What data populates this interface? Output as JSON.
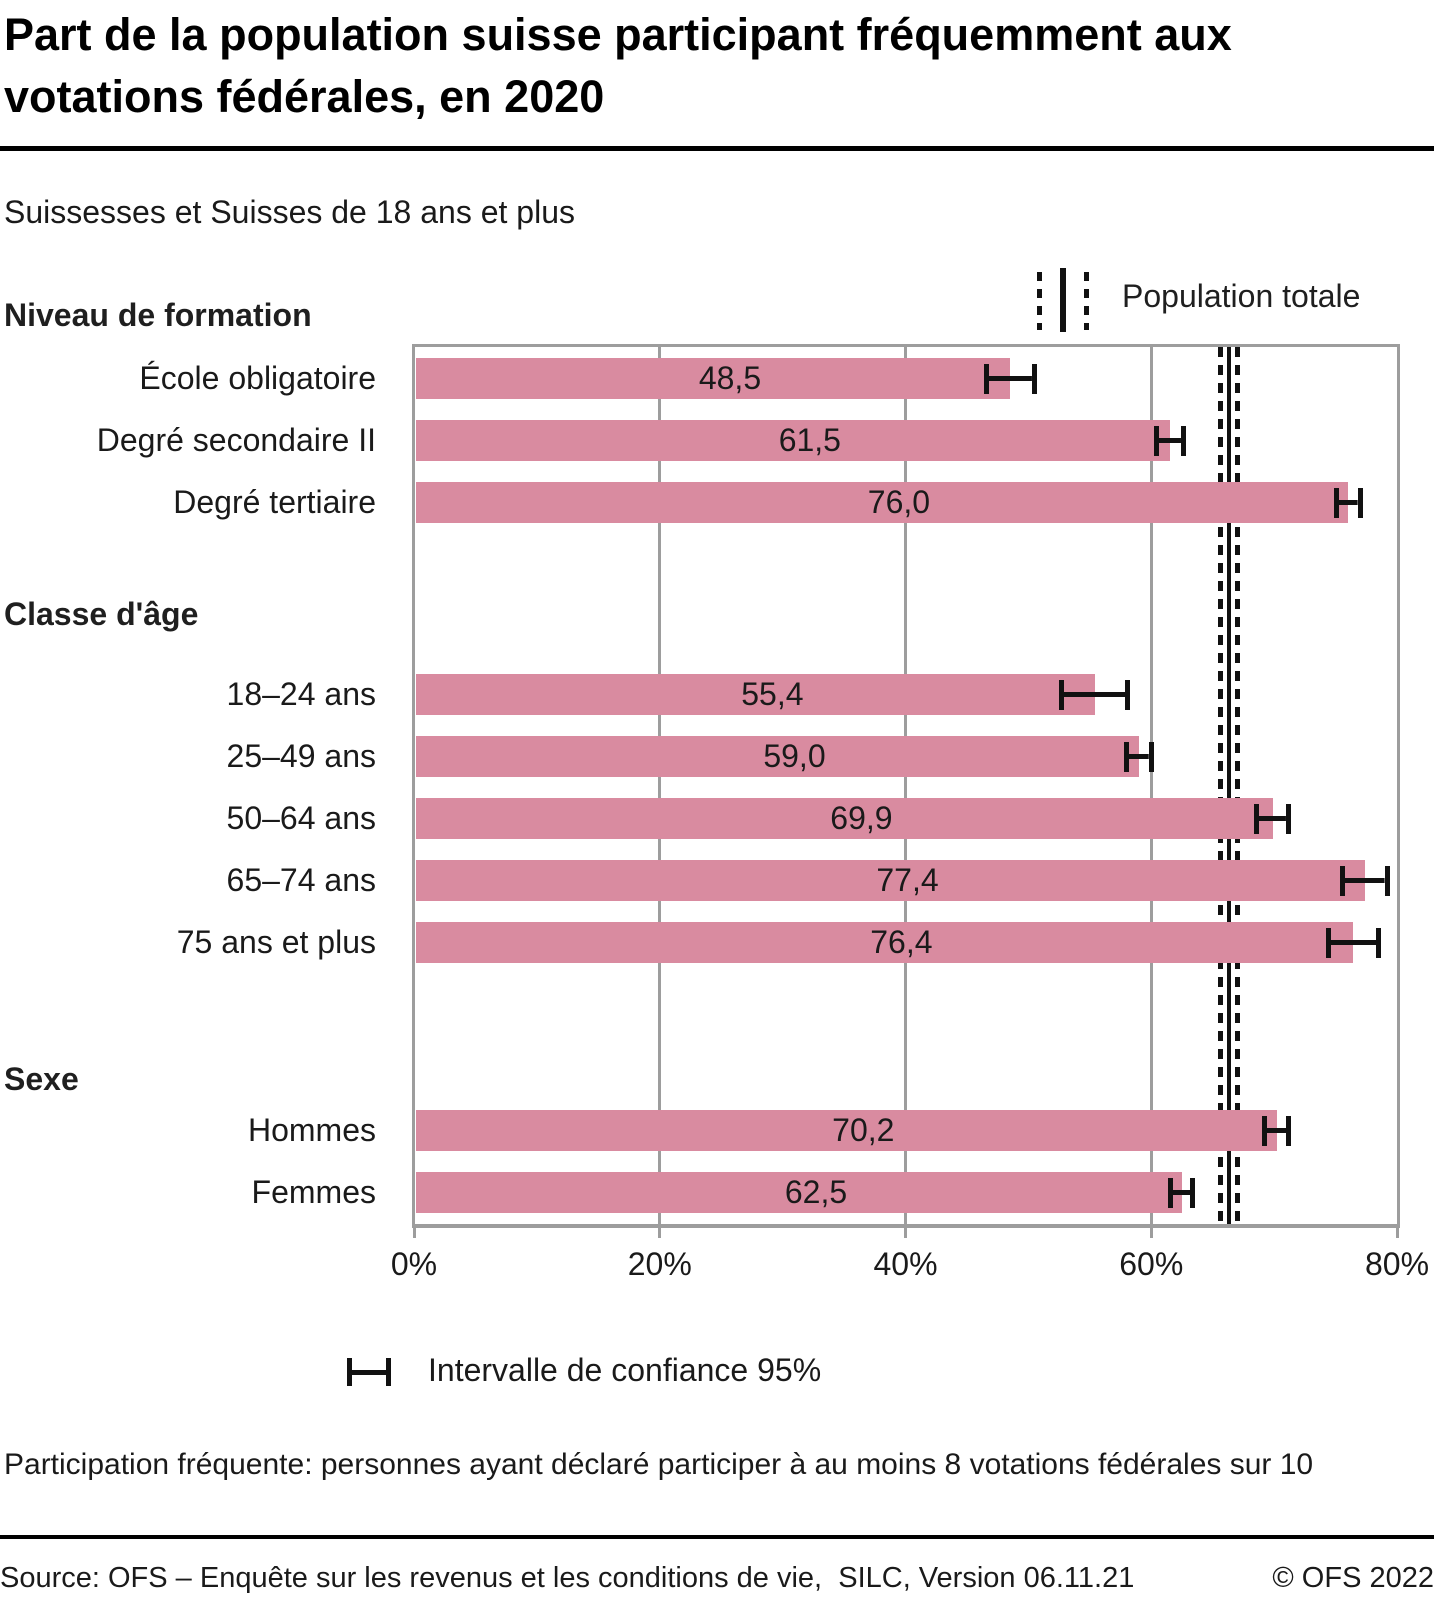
{
  "title": "Part de la population suisse participant fréquemment aux votations fédérales, en 2020",
  "subtitle": "Suissesses et Suisses de 18 ans et plus",
  "legend_top": {
    "label": "Population totale"
  },
  "legend_bottom": {
    "label": "Intervalle de confiance 95%"
  },
  "note": "Participation fréquente: personnes ayant déclaré participer à au moins 8 votations fédérales sur 10",
  "source": {
    "left": "Source: OFS – Enquête sur les revenus et les conditions de vie,  SILC, Version 06.11.21",
    "right": "© OFS 2022"
  },
  "colors": {
    "bar": "#d98ba0",
    "grid": "#9d9d9d",
    "line": "#111111",
    "text": "#1a1a1a"
  },
  "chart_data": {
    "type": "bar",
    "orientation": "horizontal",
    "unit": "%",
    "xlim": [
      0,
      80
    ],
    "x_ticks": [
      {
        "value": 0,
        "label": "0%"
      },
      {
        "value": 20,
        "label": "20%"
      },
      {
        "value": 40,
        "label": "40%"
      },
      {
        "value": 60,
        "label": "60%"
      },
      {
        "value": 80,
        "label": "80%"
      }
    ],
    "grid_values": [
      20,
      40,
      60
    ],
    "groups": [
      {
        "header": "Niveau de formation",
        "rows": [
          {
            "label": "École obligatoire",
            "value": 48.5,
            "display": "48,5",
            "ci_low": 46.4,
            "ci_high": 50.7
          },
          {
            "label": "Degré secondaire II",
            "value": 61.5,
            "display": "61,5",
            "ci_low": 60.2,
            "ci_high": 62.8
          },
          {
            "label": "Degré tertiaire",
            "value": 76.0,
            "display": "76,0",
            "ci_low": 74.9,
            "ci_high": 77.2
          }
        ]
      },
      {
        "header": "Classe d'âge",
        "rows": [
          {
            "label": "18–24 ans",
            "value": 55.4,
            "display": "55,4",
            "ci_low": 52.5,
            "ci_high": 58.3
          },
          {
            "label": "25–49 ans",
            "value": 59.0,
            "display": "59,0",
            "ci_low": 57.8,
            "ci_high": 60.2
          },
          {
            "label": "50–64 ans",
            "value": 69.9,
            "display": "69,9",
            "ci_low": 68.4,
            "ci_high": 71.4
          },
          {
            "label": "65–74 ans",
            "value": 77.4,
            "display": "77,4",
            "ci_low": 75.4,
            "ci_high": 79.4
          },
          {
            "label": "75 ans et plus",
            "value": 76.4,
            "display": "76,4",
            "ci_low": 74.2,
            "ci_high": 78.7
          }
        ]
      },
      {
        "header": "Sexe",
        "rows": [
          {
            "label": "Hommes",
            "value": 70.2,
            "display": "70,2",
            "ci_low": 69.0,
            "ci_high": 71.4
          },
          {
            "label": "Femmes",
            "value": 62.5,
            "display": "62,5",
            "ci_low": 61.4,
            "ci_high": 63.6
          }
        ]
      }
    ],
    "reference": {
      "label": "Population totale",
      "value": 66.3,
      "ci_low": 65.6,
      "ci_high": 67.0
    }
  }
}
